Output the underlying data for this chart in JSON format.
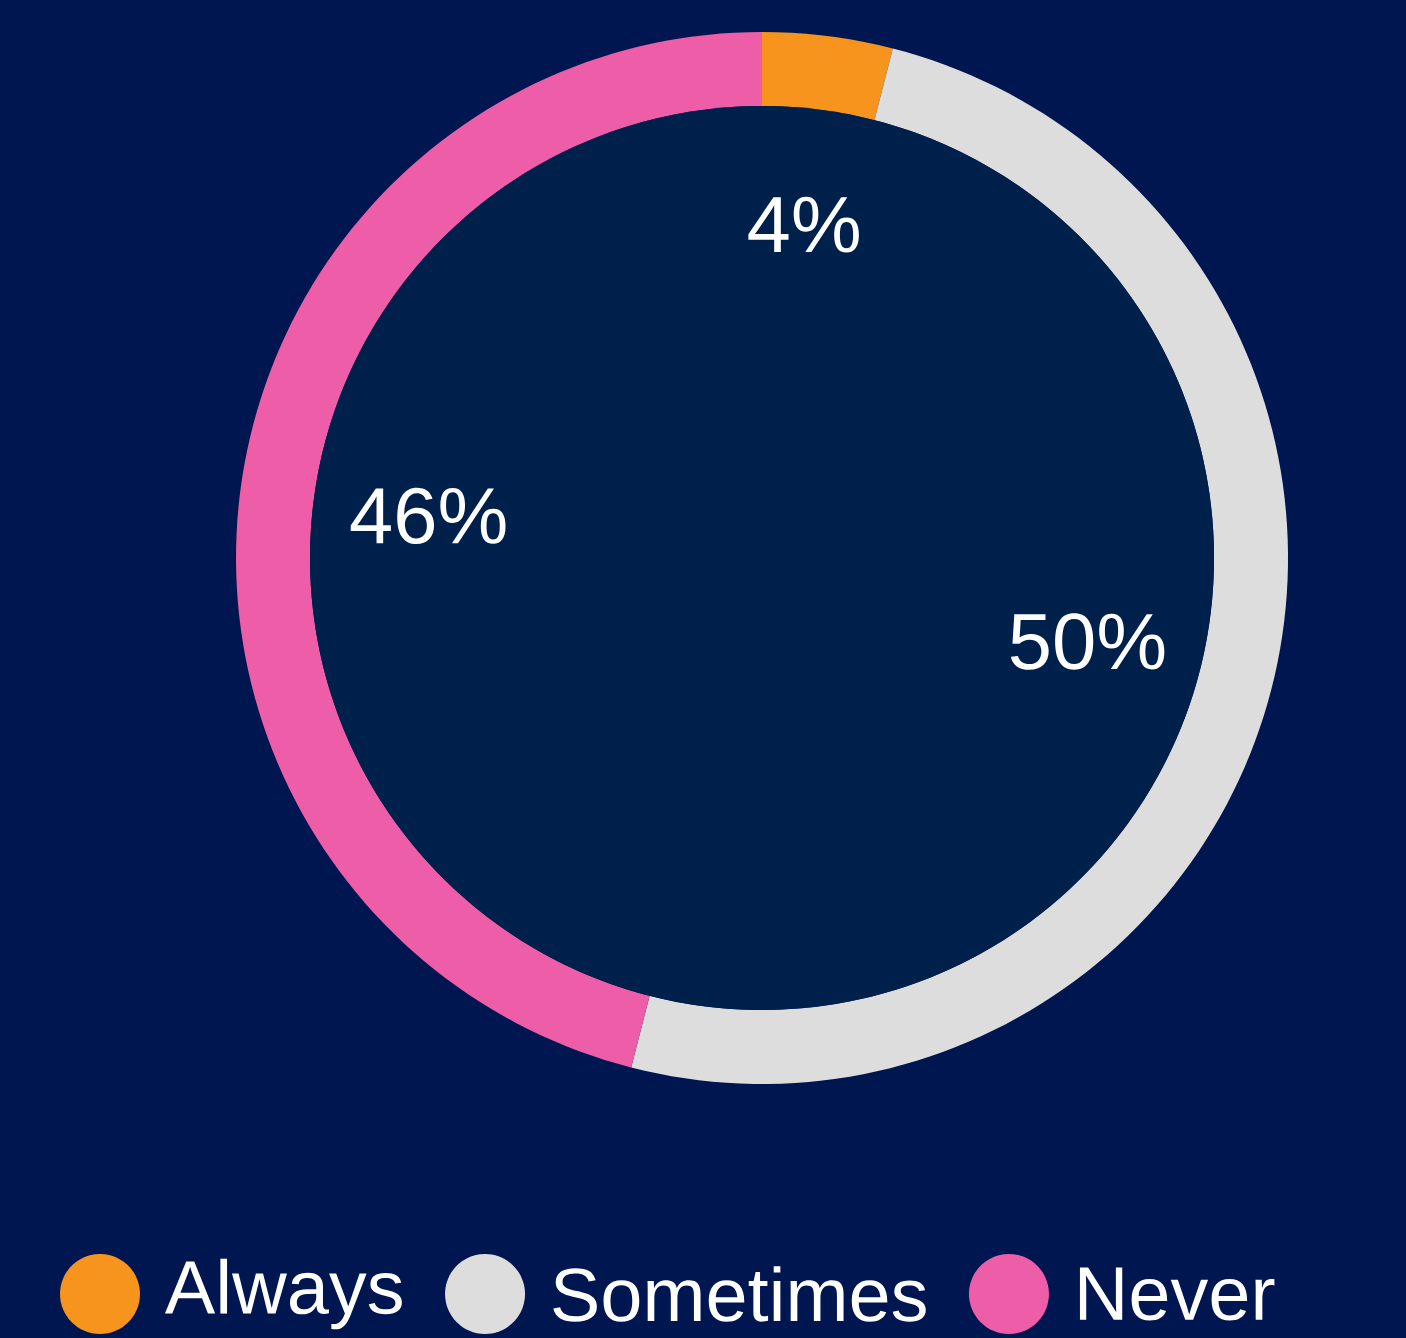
{
  "chart_data": {
    "type": "donut",
    "categories": [
      "Always",
      "Sometimes",
      "Never"
    ],
    "values": [
      4,
      50,
      46
    ],
    "colors": [
      "#f7941d",
      "#dddddd",
      "#ee5ea8"
    ],
    "value_labels": [
      "4%",
      "50%",
      "46%"
    ],
    "legend": "bottom"
  }
}
